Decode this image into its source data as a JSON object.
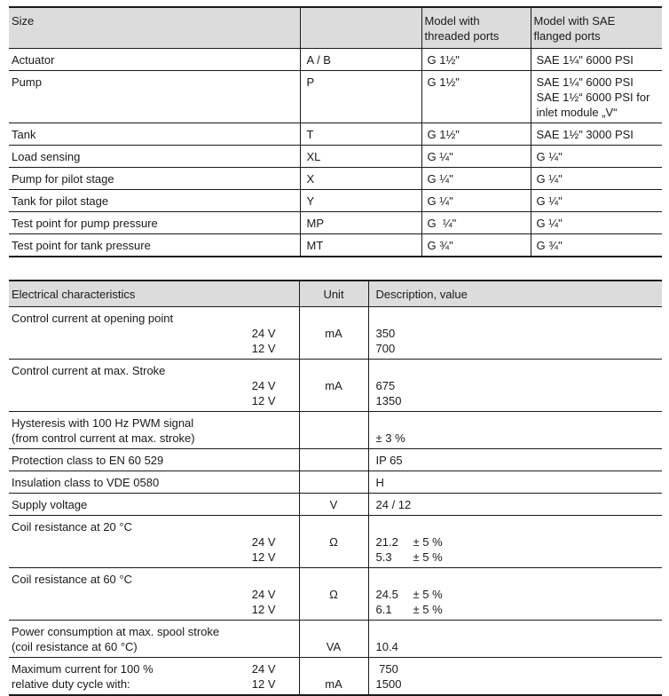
{
  "page": {
    "background": "#ffffff",
    "text_color": "#1a1a1a",
    "border_color": "#1a1a1a",
    "header_bg": "#dcdcdc"
  },
  "size_table": {
    "headers": [
      "Size",
      "",
      "Model with\nthreaded ports",
      "Model with SAE\nflanged ports"
    ],
    "rows": [
      {
        "label": "Actuator",
        "code": "A / B",
        "threaded": "G 1½\"",
        "flanged": "SAE 1¼\" 6000 PSI"
      },
      {
        "label": "Pump",
        "code": "P",
        "threaded": "G 1½\"",
        "flanged": "SAE 1¼\" 6000 PSI\nSAE 1½“ 6000 PSI for\ninlet module „V“"
      },
      {
        "label": "Tank",
        "code": "T",
        "threaded": "G 1½\"",
        "flanged": "SAE 1½\" 3000 PSI"
      },
      {
        "label": "Load sensing",
        "code": "XL",
        "threaded": "G ¼\"",
        "flanged": "G ¼\""
      },
      {
        "label": "Pump for pilot stage",
        "code": "X",
        "threaded": "G ¼\"",
        "flanged": "G ¼\""
      },
      {
        "label": "Tank for pilot stage",
        "code": "Y",
        "threaded": "G ¼\"",
        "flanged": "G ¼\""
      },
      {
        "label": "Test point for pump pressure",
        "code": "MP",
        "threaded": "G  ¼\"",
        "flanged": "G ¼\""
      },
      {
        "label": "Test point for tank pressure",
        "code": "MT",
        "threaded": "G ¾\"",
        "flanged": "G ¾\""
      }
    ]
  },
  "electrical_table": {
    "headers": [
      "Electrical characteristics",
      "Unit",
      "Description, value"
    ],
    "rows": [
      {
        "lines": [
          {
            "main": "Control current at opening point",
            "sub": "",
            "unit": "",
            "value": "",
            "tol": ""
          },
          {
            "main": "",
            "sub": "24 V",
            "unit": "mA",
            "value": "350",
            "tol": ""
          },
          {
            "main": "",
            "sub": "12 V",
            "unit": "",
            "value": "700",
            "tol": ""
          }
        ]
      },
      {
        "lines": [
          {
            "main": "Control current at max. Stroke",
            "sub": "",
            "unit": "",
            "value": "",
            "tol": ""
          },
          {
            "main": "",
            "sub": "24 V",
            "unit": "mA",
            "value": "675",
            "tol": ""
          },
          {
            "main": "",
            "sub": "12 V",
            "unit": "",
            "value": "1350",
            "tol": ""
          }
        ]
      },
      {
        "lines": [
          {
            "main": "Hysteresis with 100 Hz PWM signal",
            "sub": "",
            "unit": "",
            "value": "",
            "tol": ""
          },
          {
            "main": "(from control current at max. stroke)",
            "sub": "",
            "unit": "",
            "value": "± 3 %",
            "tol": ""
          }
        ]
      },
      {
        "lines": [
          {
            "main": "Protection class to EN 60 529",
            "sub": "",
            "unit": "",
            "value": "IP 65",
            "tol": ""
          }
        ]
      },
      {
        "lines": [
          {
            "main": "Insulation class to VDE 0580",
            "sub": "",
            "unit": "",
            "value": "H",
            "tol": ""
          }
        ]
      },
      {
        "lines": [
          {
            "main": "Supply voltage",
            "sub": "",
            "unit": "V",
            "value": "24 / 12",
            "tol": ""
          }
        ]
      },
      {
        "lines": [
          {
            "main": "Coil resistance at 20 °C",
            "sub": "",
            "unit": "",
            "value": "",
            "tol": ""
          },
          {
            "main": "",
            "sub": "24 V",
            "unit": "Ω",
            "value": "21.2",
            "tol": "± 5 %"
          },
          {
            "main": "",
            "sub": "12 V",
            "unit": "",
            "value": "5.3",
            "tol": "± 5 %"
          }
        ]
      },
      {
        "lines": [
          {
            "main": "Coil resistance at 60 °C",
            "sub": "",
            "unit": "",
            "value": "",
            "tol": ""
          },
          {
            "main": "",
            "sub": "24 V",
            "unit": "Ω",
            "value": "24.5",
            "tol": "± 5 %"
          },
          {
            "main": "",
            "sub": "12 V",
            "unit": "",
            "value": "6.1",
            "tol": "± 5 %"
          }
        ]
      },
      {
        "lines": [
          {
            "main": "Power consumption at max. spool stroke",
            "sub": "",
            "unit": "",
            "value": "",
            "tol": ""
          },
          {
            "main": "(coil resistance at 60 °C)",
            "sub": "",
            "unit": "VA",
            "value": "10.4",
            "tol": ""
          }
        ]
      },
      {
        "lines": [
          {
            "main": "Maximum current for 100 %",
            "sub": "24 V",
            "unit": "",
            "value": " 750",
            "tol": ""
          },
          {
            "main": "relative duty cycle with:",
            "sub": "12 V",
            "unit": "mA",
            "value": "1500",
            "tol": ""
          }
        ]
      }
    ]
  }
}
